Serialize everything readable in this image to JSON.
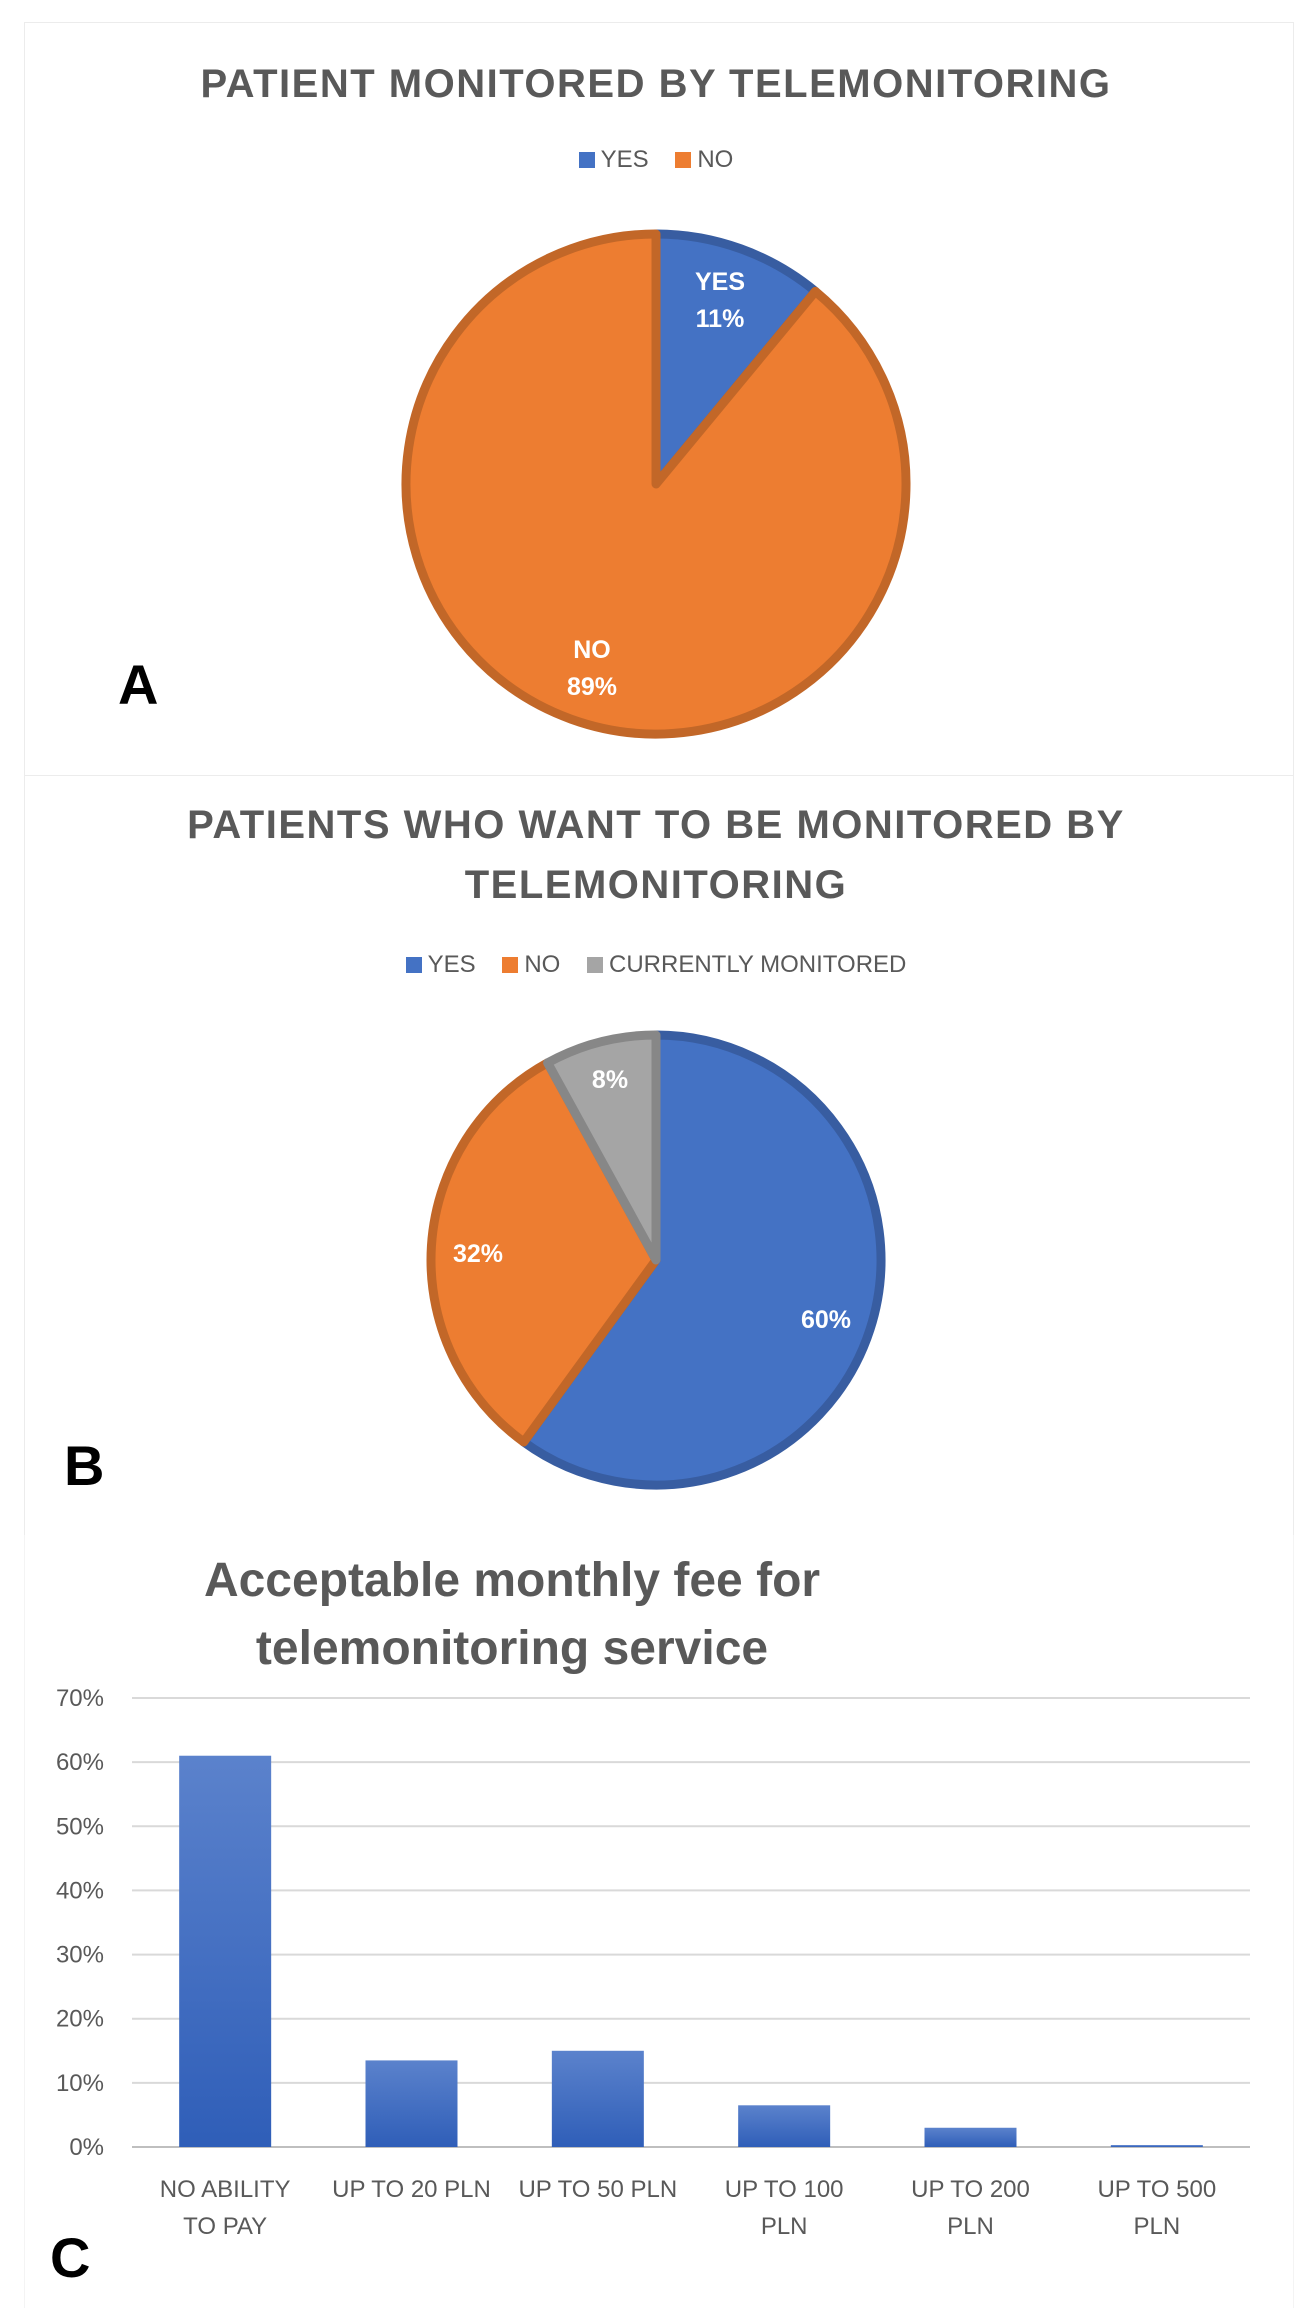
{
  "chart_data": [
    {
      "panel": "A",
      "type": "pie",
      "title": "PATIENT MONITORED BY TELEMONITORING",
      "legend": [
        "YES",
        "NO"
      ],
      "slices": [
        {
          "label": "YES",
          "value": 11,
          "display": "11%",
          "color": "#4472C4"
        },
        {
          "label": "NO",
          "value": 89,
          "display": "89%",
          "color": "#ED7D31"
        }
      ]
    },
    {
      "panel": "B",
      "type": "pie",
      "title_line1": "PATIENTS WHO WANT TO BE MONITORED BY",
      "title_line2": "TELEMONITORING",
      "legend": [
        "YES",
        "NO",
        "CURRENTLY MONITORED"
      ],
      "slices": [
        {
          "label": "YES",
          "value": 60,
          "display": "60%",
          "color": "#4472C4"
        },
        {
          "label": "NO",
          "value": 32,
          "display": "32%",
          "color": "#ED7D31"
        },
        {
          "label": "CURRENTLY MONITORED",
          "value": 8,
          "display": "8%",
          "color": "#A5A5A5"
        }
      ]
    },
    {
      "panel": "C",
      "type": "bar",
      "title_line1": "Acceptable monthly fee for",
      "title_line2": "telemonitoring service",
      "categories": [
        [
          "NO ABILITY",
          "TO PAY"
        ],
        [
          "UP TO 20 PLN",
          ""
        ],
        [
          "UP TO 50 PLN",
          ""
        ],
        [
          "UP TO 100",
          "PLN"
        ],
        [
          "UP TO 200",
          "PLN"
        ],
        [
          "UP TO 500",
          "PLN"
        ]
      ],
      "values": [
        61,
        13.5,
        15,
        6.5,
        3,
        0.3
      ],
      "ylim": [
        0,
        70
      ],
      "yticks": [
        "0%",
        "10%",
        "20%",
        "30%",
        "40%",
        "50%",
        "60%",
        "70%"
      ],
      "color": "#4472C4",
      "grid": true
    }
  ],
  "labels": {
    "a": "A",
    "b": "B",
    "c": "C"
  }
}
